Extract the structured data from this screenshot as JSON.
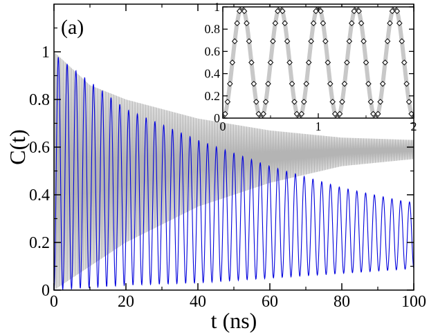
{
  "chart_data": [
    {
      "type": "line",
      "panel_label": "(a)",
      "xlabel": "t (ns)",
      "ylabel": "C(t)",
      "xlim": [
        0,
        100
      ],
      "ylim": [
        0,
        1.2
      ],
      "xticks": [
        0,
        20,
        40,
        60,
        80,
        100
      ],
      "yticks": [
        0,
        0.2,
        0.4,
        0.6,
        0.8,
        1
      ],
      "grid": false,
      "series": [
        {
          "color": "#b4b4b4",
          "style": "fast oscillation filling an envelope",
          "envelope_upper": {
            "x": [
              0,
              10,
              20,
              40,
              60,
              80,
              100
            ],
            "y": [
              1.0,
              0.86,
              0.8,
              0.72,
              0.67,
              0.64,
              0.63
            ]
          },
          "envelope_lower": {
            "x": [
              0,
              10,
              20,
              40,
              60,
              80,
              100
            ],
            "y": [
              0.0,
              0.1,
              0.2,
              0.35,
              0.45,
              0.52,
              0.55
            ]
          }
        },
        {
          "color": "#0000dd",
          "style": "oscillation with decaying peaks and rising troughs",
          "period_ns": 2.44,
          "peak": {
            "x": [
              1,
              20,
              40,
              60,
              80,
              98
            ],
            "y": [
              0.98,
              0.76,
              0.63,
              0.52,
              0.43,
              0.37
            ]
          },
          "trough": {
            "x": [
              0,
              20,
              40,
              60,
              80,
              100
            ],
            "y": [
              0.0,
              0.02,
              0.03,
              0.05,
              0.07,
              0.09
            ]
          }
        }
      ]
    },
    {
      "type": "line",
      "role": "inset",
      "xlim": [
        0,
        2
      ],
      "ylim": [
        0,
        1
      ],
      "xticks": [
        0,
        1,
        2
      ],
      "yticks": [
        0,
        0.2,
        0.4,
        0.6,
        0.8,
        1
      ],
      "yticklabels": [
        "0",
        "0.2",
        "0.4",
        "0.6",
        "0.8",
        "1"
      ],
      "series": [
        {
          "color": "#c8c8c8",
          "style": "thick line",
          "model": "C(t) = sin^2(pi t / 0.4)",
          "period": 0.4,
          "peak_x": [
            0.2,
            0.6,
            1.0,
            1.4,
            1.8
          ],
          "zero_x": [
            0,
            0.4,
            0.8,
            1.2,
            1.6,
            2.0
          ]
        },
        {
          "color": "#000000",
          "marker": "diamond",
          "x_step": 0.025,
          "x_range": [
            0,
            2
          ]
        }
      ]
    }
  ]
}
